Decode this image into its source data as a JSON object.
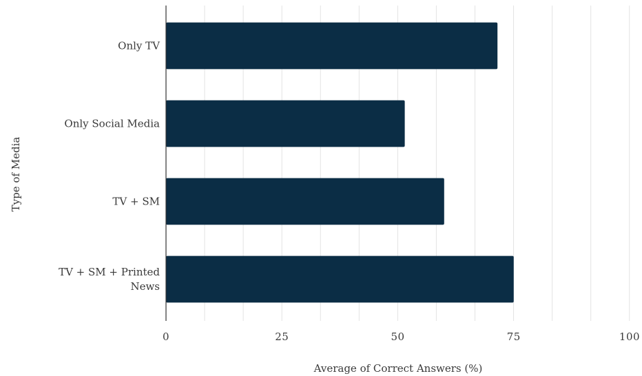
{
  "chart_data": {
    "type": "bar",
    "orientation": "horizontal",
    "categories": [
      "Only TV",
      "Only Social Media",
      "TV + SM",
      "TV + SM + Printed News"
    ],
    "category_lines": [
      [
        "Only TV"
      ],
      [
        "Only Social Media"
      ],
      [
        "TV + SM"
      ],
      [
        "TV + SM + Printed",
        "News"
      ]
    ],
    "values": [
      71.5,
      51.5,
      60,
      75
    ],
    "xlabel": "Average of Correct Answers (%)",
    "ylabel": "Type of Media",
    "xlim": [
      0,
      100
    ],
    "xticks": [
      0,
      25,
      50,
      75,
      100
    ],
    "minor_grid_step": 8.33,
    "grid": true,
    "bar_color": "#0b2d45",
    "grid_color": "#e3e3e3"
  }
}
